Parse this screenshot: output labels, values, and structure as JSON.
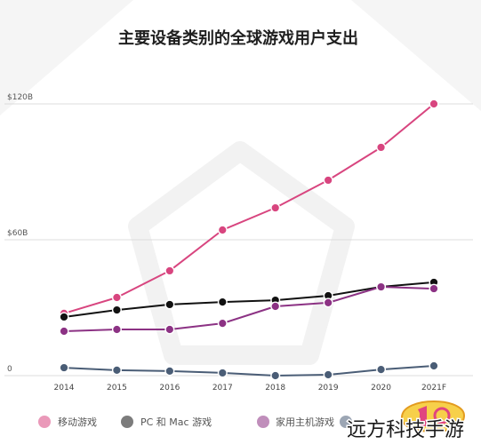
{
  "chart_data": {
    "type": "line",
    "title": "主要设备类别的全球游戏用户支出",
    "categories": [
      "2014",
      "2015",
      "2016",
      "2017",
      "2018",
      "2019",
      "2020",
      "2021F"
    ],
    "ylim": [
      0,
      120
    ],
    "yticks": [
      0,
      60,
      120
    ],
    "yticklabels": [
      "0",
      "$60B",
      "$120B"
    ],
    "grid": true,
    "legend_position": "bottom",
    "series": [
      {
        "name": "移动游戏",
        "color": "#d8457f",
        "values": [
          27.5,
          34.5,
          46.3,
          64.3,
          74.1,
          86.3,
          100.8,
          120
        ]
      },
      {
        "name": "PC 和 Mac 游戏",
        "color": "#111111",
        "values": [
          25.9,
          29.0,
          31.4,
          32.5,
          33.3,
          35.3,
          39.2,
          41.2
        ]
      },
      {
        "name": "家用主机游戏",
        "color": "#8c3284",
        "values": [
          19.6,
          20.4,
          20.4,
          23.1,
          30.6,
          32.2,
          39.2,
          38.4
        ]
      },
      {
        "color": "#4a5d76",
        "values": [
          3.5,
          2.4,
          2.0,
          1.2,
          0.0,
          0.4,
          2.7,
          4.3
        ]
      }
    ]
  },
  "watermark": {
    "text": "远方科技手游"
  }
}
